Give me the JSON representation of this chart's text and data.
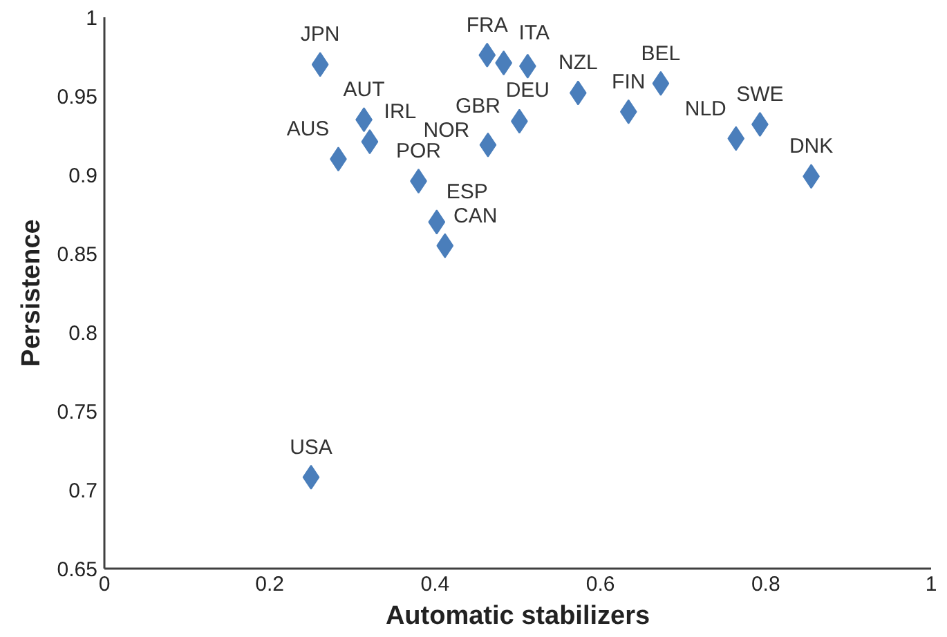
{
  "chart_data": {
    "type": "scatter",
    "xlabel": "Automatic stabilizers",
    "ylabel": "Persistence",
    "x": [
      0.261,
      0.314,
      0.321,
      0.283,
      0.38,
      0.402,
      0.412,
      0.463,
      0.483,
      0.512,
      0.502,
      0.464,
      0.573,
      0.634,
      0.673,
      0.764,
      0.793,
      0.855,
      0.25
    ],
    "series": [
      {
        "color": "#4a7ebb",
        "values": [
          0.97,
          0.935,
          0.921,
          0.91,
          0.896,
          0.87,
          0.855,
          0.976,
          0.971,
          0.969,
          0.934,
          0.919,
          0.952,
          0.94,
          0.958,
          0.923,
          0.932,
          0.899,
          0.708
        ]
      }
    ],
    "annotations": [
      {
        "text": "JPN",
        "x": 0.261,
        "y": 0.97
      },
      {
        "text": "AUT",
        "x": 0.314,
        "y": 0.935
      },
      {
        "text": "IRL",
        "x": 0.321,
        "y": 0.921
      },
      {
        "text": "AUS",
        "x": 0.283,
        "y": 0.91
      },
      {
        "text": "POR",
        "x": 0.38,
        "y": 0.896
      },
      {
        "text": "ESP",
        "x": 0.402,
        "y": 0.87
      },
      {
        "text": "CAN",
        "x": 0.412,
        "y": 0.855
      },
      {
        "text": "FRA",
        "x": 0.463,
        "y": 0.976
      },
      {
        "text": "ITA",
        "x": 0.483,
        "y": 0.971
      },
      {
        "text": "DEU",
        "x": 0.512,
        "y": 0.969
      },
      {
        "text": "GBR",
        "x": 0.502,
        "y": 0.934
      },
      {
        "text": "NOR",
        "x": 0.464,
        "y": 0.919
      },
      {
        "text": "NZL",
        "x": 0.573,
        "y": 0.952
      },
      {
        "text": "FIN",
        "x": 0.634,
        "y": 0.94
      },
      {
        "text": "BEL",
        "x": 0.673,
        "y": 0.958
      },
      {
        "text": "NLD",
        "x": 0.764,
        "y": 0.923
      },
      {
        "text": "SWE",
        "x": 0.793,
        "y": 0.932
      },
      {
        "text": "DNK",
        "x": 0.855,
        "y": 0.899
      },
      {
        "text": "USA",
        "x": 0.25,
        "y": 0.708
      }
    ],
    "xlim": [
      0,
      1
    ],
    "xticks": [
      0,
      0.2,
      0.4,
      0.6,
      0.8,
      1
    ],
    "ylim": [
      0.65,
      1
    ],
    "yticks": [
      0.65,
      0.7,
      0.75,
      0.8,
      0.85,
      0.9,
      0.95,
      1
    ],
    "marker": "diamond"
  }
}
